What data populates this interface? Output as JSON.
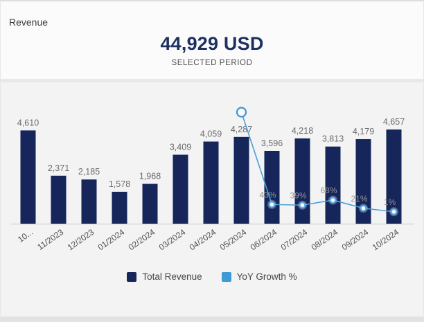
{
  "header": {
    "widget_title": "Revenue",
    "total_value": "44,929 USD",
    "subtitle": "SELECTED PERIOD"
  },
  "legend": [
    {
      "label": "Total Revenue",
      "color": "#16265a"
    },
    {
      "label": "YoY Growth %",
      "color": "#3e9ad6"
    }
  ],
  "chart_data": {
    "type": "bar+line",
    "title": "Revenue",
    "xlabel": "",
    "ylabel": "",
    "categories": [
      "10...",
      "11/2023",
      "12/2023",
      "01/2024",
      "02/2024",
      "03/2024",
      "04/2024",
      "05/2024",
      "06/2024",
      "07/2024",
      "08/2024",
      "09/2024",
      "10/2024"
    ],
    "series": [
      {
        "name": "Total Revenue",
        "type": "bar",
        "color": "#16265a",
        "values": [
          4610,
          2371,
          2185,
          1578,
          1968,
          3409,
          4059,
          4287,
          3596,
          4218,
          3813,
          4179,
          4657
        ],
        "value_labels": [
          "4,610",
          "2,371",
          "2,185",
          "1,578",
          "1,968",
          "3,409",
          "4,059",
          "4,287",
          "3,596",
          "4,218",
          "3,813",
          "4,179",
          "4,657"
        ]
      },
      {
        "name": "YoY Growth %",
        "type": "line",
        "color": "#4a9fd8",
        "values": [
          null,
          null,
          null,
          null,
          null,
          null,
          null,
          576,
          43,
          39,
          68,
          21,
          1
        ],
        "point_labels": [
          "",
          "",
          "",
          "",
          "",
          "",
          "",
          "",
          "43%",
          "39%",
          "68%",
          "21%",
          "1%"
        ],
        "unlabeled_point_index": 7,
        "unlabeled_point_note": "value estimated from pixel position; no label shown"
      }
    ],
    "ylim": [
      0,
      4657
    ],
    "grid": false,
    "legend_position": "bottom"
  }
}
